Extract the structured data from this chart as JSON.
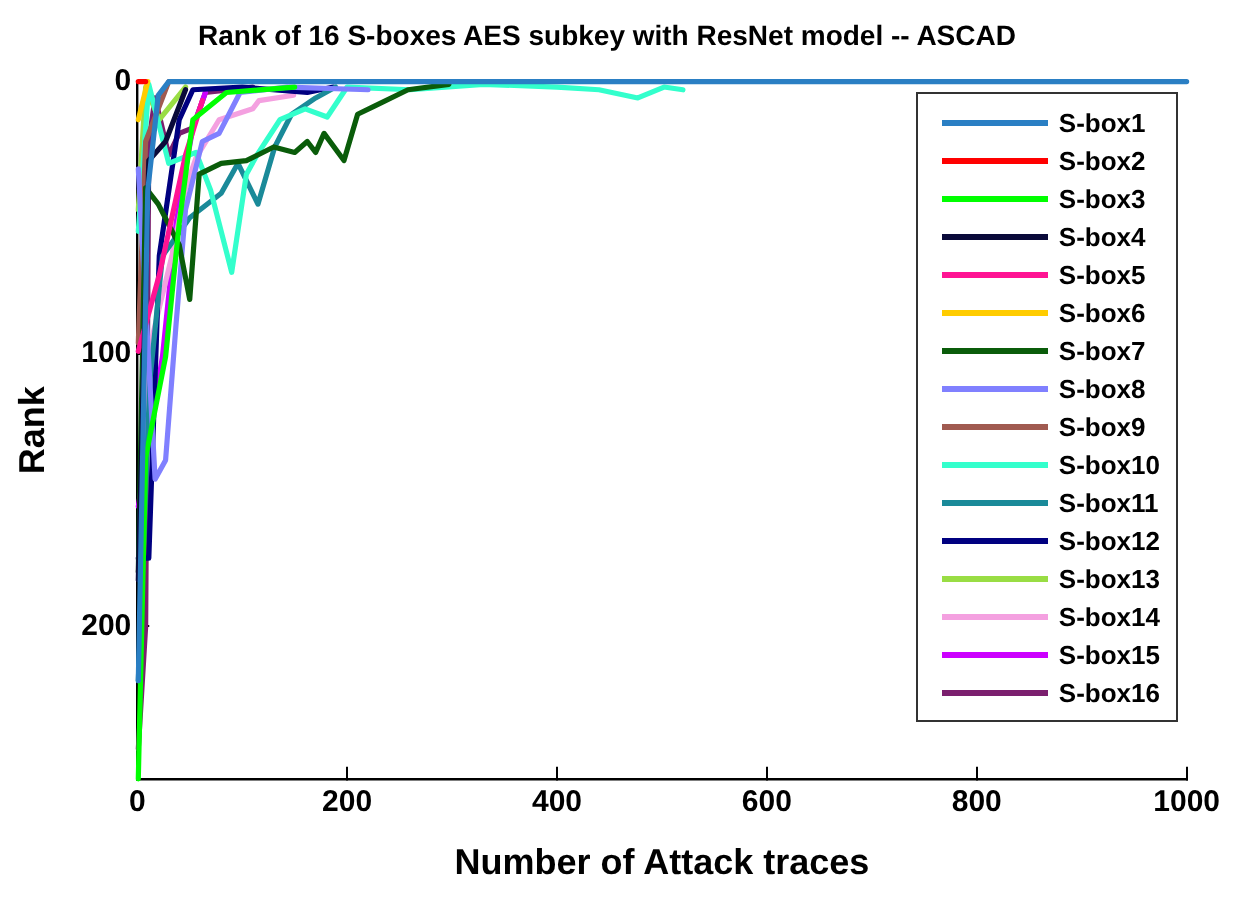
{
  "chart_data": {
    "type": "line",
    "title": "Rank of 16 S-boxes AES subkey with ResNet model -- ASCAD",
    "xlabel": "Number of Attack traces",
    "ylabel": "Rank",
    "xlim": [
      0,
      1000
    ],
    "xticks": [
      0,
      200,
      400,
      600,
      800,
      1000
    ],
    "ylim": [
      256,
      0
    ],
    "yticks": [
      0,
      100,
      200
    ],
    "grid": false,
    "legend": "top right",
    "marker": "none",
    "line_style": "solid",
    "series": [
      {
        "name": "S-box1",
        "color": "#2a7fc4",
        "x": [
          1,
          10,
          20,
          30,
          1000
        ],
        "values": [
          220,
          40,
          5,
          0,
          0
        ]
      },
      {
        "name": "S-box2",
        "color": "#ff0000",
        "x": [
          1,
          8
        ],
        "values": [
          0,
          0
        ]
      },
      {
        "name": "S-box3",
        "color": "#00ff00",
        "x": [
          1,
          8,
          27,
          40,
          53,
          85,
          150
        ],
        "values": [
          256,
          138,
          101,
          52,
          14,
          4,
          2
        ]
      },
      {
        "name": "S-box4",
        "color": "#0a0a3a",
        "x": [
          1,
          11,
          27,
          46
        ],
        "values": [
          183,
          29,
          22,
          3
        ]
      },
      {
        "name": "S-box5",
        "color": "#ff1493",
        "x": [
          1,
          21,
          46,
          62
        ],
        "values": [
          99,
          71,
          27,
          7
        ]
      },
      {
        "name": "S-box6",
        "color": "#ffcc00",
        "x": [
          1,
          10
        ],
        "values": [
          14,
          0
        ]
      },
      {
        "name": "S-box7",
        "color": "#0a5c0a",
        "x": [
          1,
          8,
          20,
          40,
          50,
          59,
          80,
          104,
          130,
          150,
          162,
          170,
          178,
          197,
          210,
          226,
          258,
          297
        ],
        "values": [
          180,
          39,
          45,
          60,
          80,
          34,
          30,
          29,
          24,
          26,
          22,
          26,
          19,
          29,
          12,
          9,
          3,
          1
        ]
      },
      {
        "name": "S-box8",
        "color": "#8080ff",
        "x": [
          1,
          17,
          27,
          37,
          46,
          62,
          78,
          98,
          143,
          220
        ],
        "values": [
          32,
          146,
          139,
          89,
          47,
          22,
          19,
          4,
          2,
          3
        ]
      },
      {
        "name": "S-box9",
        "color": "#a05a50",
        "x": [
          1,
          8,
          30
        ],
        "values": [
          96,
          22,
          0
        ]
      },
      {
        "name": "S-box10",
        "color": "#33ffcc",
        "x": [
          1,
          11,
          30,
          56,
          70,
          90,
          104,
          114,
          136,
          160,
          181,
          200,
          260,
          330,
          400,
          440,
          477,
          502,
          520
        ],
        "values": [
          55,
          1,
          30,
          26,
          40,
          70,
          34,
          27,
          14,
          10,
          13,
          2,
          3,
          1,
          2,
          3,
          6,
          2,
          3
        ]
      },
      {
        "name": "S-box11",
        "color": "#1a8a99",
        "x": [
          1,
          12,
          24,
          50,
          80,
          96,
          115,
          131,
          147,
          170,
          189
        ],
        "values": [
          220,
          110,
          64,
          50,
          41,
          30,
          45,
          24,
          12,
          6,
          2
        ]
      },
      {
        "name": "S-box12",
        "color": "#000080",
        "x": [
          1,
          11,
          21,
          40,
          53,
          100,
          162,
          187
        ],
        "values": [
          175,
          175,
          64,
          14,
          3,
          2,
          4,
          2
        ]
      },
      {
        "name": "S-box13",
        "color": "#99dd44",
        "x": [
          1,
          8,
          21,
          46
        ],
        "values": [
          47,
          2,
          14,
          2
        ]
      },
      {
        "name": "S-box14",
        "color": "#f4a0e0",
        "x": [
          1,
          11,
          33,
          46,
          56,
          78,
          110,
          116,
          149
        ],
        "values": [
          180,
          99,
          64,
          39,
          28,
          14,
          10,
          7,
          5
        ]
      },
      {
        "name": "S-box15",
        "color": "#cc00ff",
        "x": [
          1,
          24,
          37,
          53,
          65
        ],
        "values": [
          156,
          101,
          52,
          17,
          4
        ]
      },
      {
        "name": "S-box16",
        "color": "#7b1f6e",
        "x": [
          1,
          8,
          11,
          17,
          30,
          40,
          53,
          65,
          110
        ],
        "values": [
          245,
          200,
          22,
          6,
          27,
          19,
          17,
          4,
          2
        ]
      }
    ]
  }
}
